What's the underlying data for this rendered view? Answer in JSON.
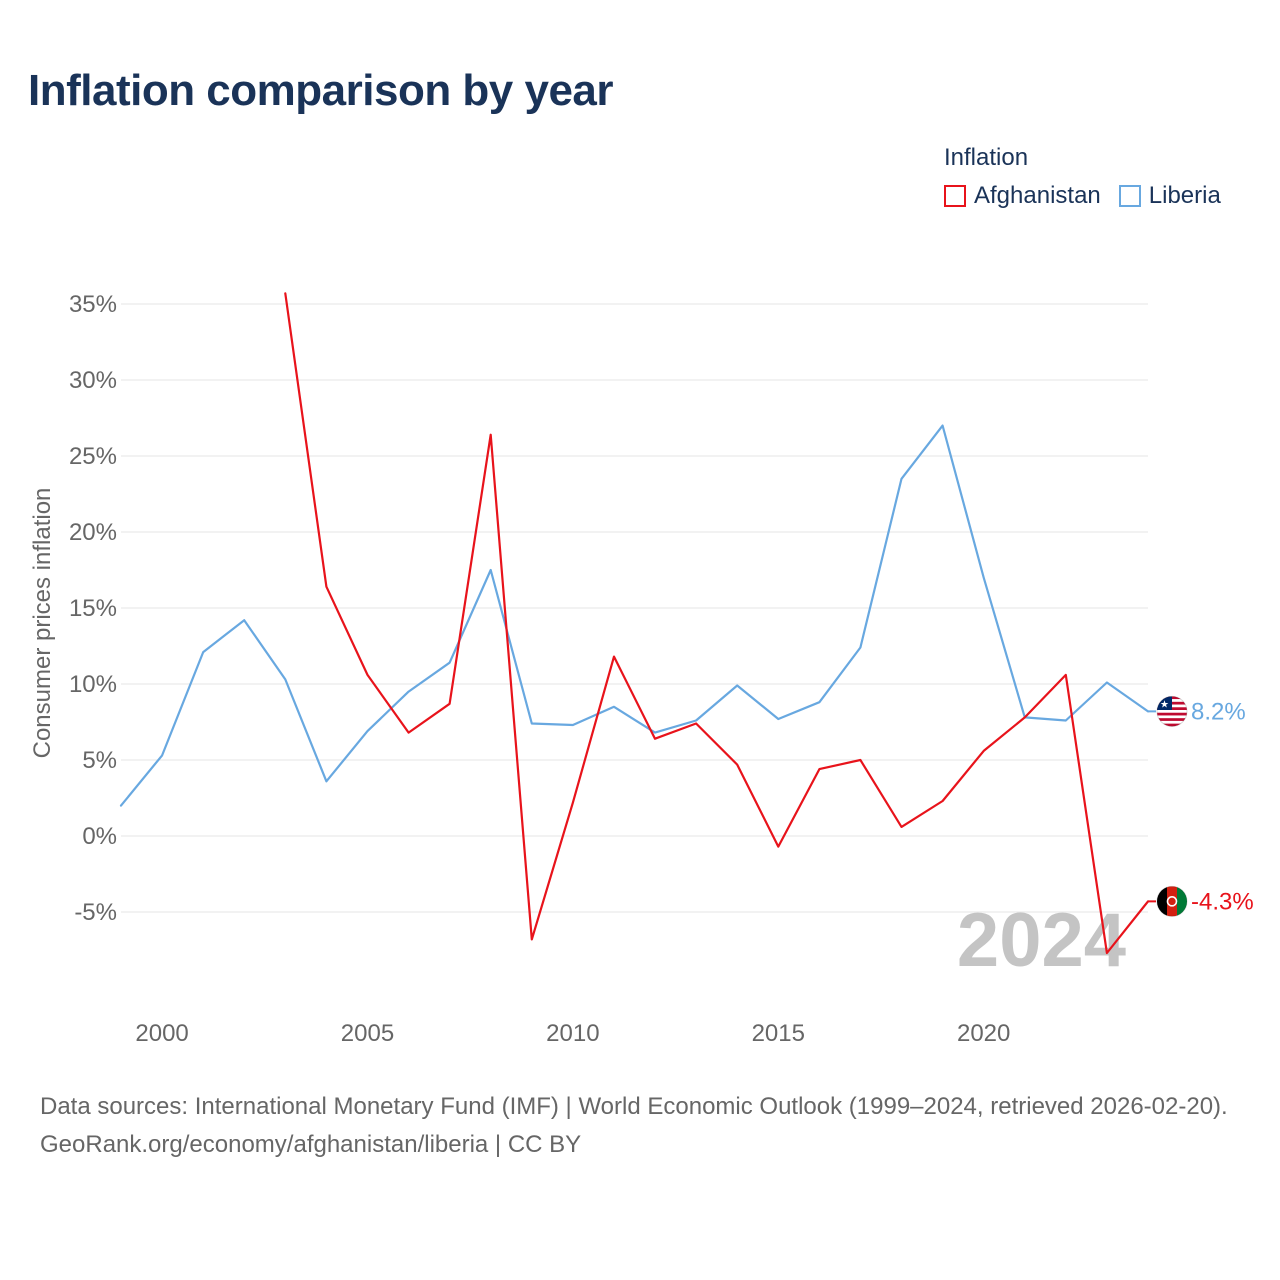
{
  "title": "Inflation comparison by year",
  "legend": {
    "title": "Inflation",
    "items": [
      {
        "label": "Afghanistan",
        "color": "#e8131b"
      },
      {
        "label": "Liberia",
        "color": "#68a8e0"
      }
    ]
  },
  "chart_data": {
    "type": "line",
    "title": "Inflation comparison by year",
    "xlabel": "",
    "ylabel": "Consumer prices inflation",
    "x": [
      1999,
      2000,
      2001,
      2002,
      2003,
      2004,
      2005,
      2006,
      2007,
      2008,
      2009,
      2010,
      2011,
      2012,
      2013,
      2014,
      2015,
      2016,
      2017,
      2018,
      2019,
      2020,
      2021,
      2022,
      2023,
      2024
    ],
    "xlim": [
      1999,
      2024
    ],
    "ylim": [
      -7.8,
      35.5
    ],
    "x_ticks": [
      2000,
      2005,
      2010,
      2015,
      2020
    ],
    "y_ticks": [
      -5,
      0,
      5,
      10,
      15,
      20,
      25,
      30,
      35
    ],
    "y_tick_labels": [
      "-5%",
      "0%",
      "5%",
      "10%",
      "15%",
      "20%",
      "25%",
      "30%",
      "35%"
    ],
    "grid": true,
    "year_watermark": "2024",
    "series": [
      {
        "name": "Afghanistan",
        "color": "#e8131b",
        "values": [
          null,
          null,
          null,
          null,
          35.7,
          16.4,
          10.6,
          6.8,
          8.7,
          26.4,
          -6.8,
          2.2,
          11.8,
          6.4,
          7.4,
          4.7,
          -0.7,
          4.4,
          5.0,
          0.6,
          2.3,
          5.6,
          7.8,
          10.6,
          -7.7,
          -4.3
        ],
        "end_label": "-4.3%"
      },
      {
        "name": "Liberia",
        "color": "#68a8e0",
        "values": [
          2.0,
          5.3,
          12.1,
          14.2,
          10.3,
          3.6,
          6.9,
          9.5,
          11.4,
          17.5,
          7.4,
          7.3,
          8.5,
          6.8,
          7.6,
          9.9,
          7.7,
          8.8,
          12.4,
          23.5,
          27.0,
          17.0,
          7.8,
          7.6,
          10.1,
          8.2
        ],
        "end_label": "8.2%"
      }
    ]
  },
  "footer": {
    "sources": "Data sources: International Monetary Fund (IMF) | World Economic Outlook (1999–2024, retrieved 2026-02-20).",
    "attribution": "GeoRank.org/economy/afghanistan/liberia | CC BY"
  }
}
